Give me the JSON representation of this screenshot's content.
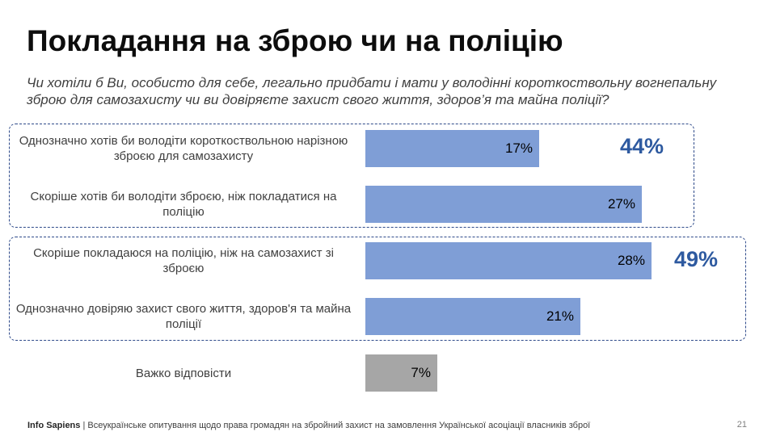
{
  "title": "Покладання на зброю чи на поліцію",
  "subtitle": "Чи хотіли б Ви, особисто для себе, легально придбати і мати у володінні короткоствольну вогнепальну зброю для самозахисту чи ви довіряєте захист свого життя, здоров’я та майна поліції?",
  "groups": [
    {
      "total_label": "44%"
    },
    {
      "total_label": "49%"
    }
  ],
  "colors": {
    "primary_bar": "#7f9ed6",
    "neutral_bar": "#a6a6a6",
    "accent": "#2e5aa0"
  },
  "footer": {
    "brand": "Info Sapiens",
    "text": "| Всеукраїнське опитування щодо права громадян на збройний захист на замовлення Української асоціації власників зброї",
    "page": "21"
  },
  "chart_data": {
    "type": "bar",
    "orientation": "horizontal",
    "categories": [
      "Однозначно хотів би володіти короткоствольною нарізною зброєю для самозахисту",
      "Скоріше хотів би володіти зброєю, ніж покладатися на поліцію",
      "Скоріше покладаюся на поліцію, ніж на самозахист зі зброєю",
      "Однозначно довіряю захист свого життя, здоров'я та майна поліції",
      "Важко відповісти"
    ],
    "values": [
      17,
      27,
      28,
      21,
      7
    ],
    "value_labels": [
      "17%",
      "27%",
      "28%",
      "21%",
      "7%"
    ],
    "unit": "%",
    "xlim": [
      0,
      30
    ],
    "grid": false,
    "legend": "none"
  }
}
